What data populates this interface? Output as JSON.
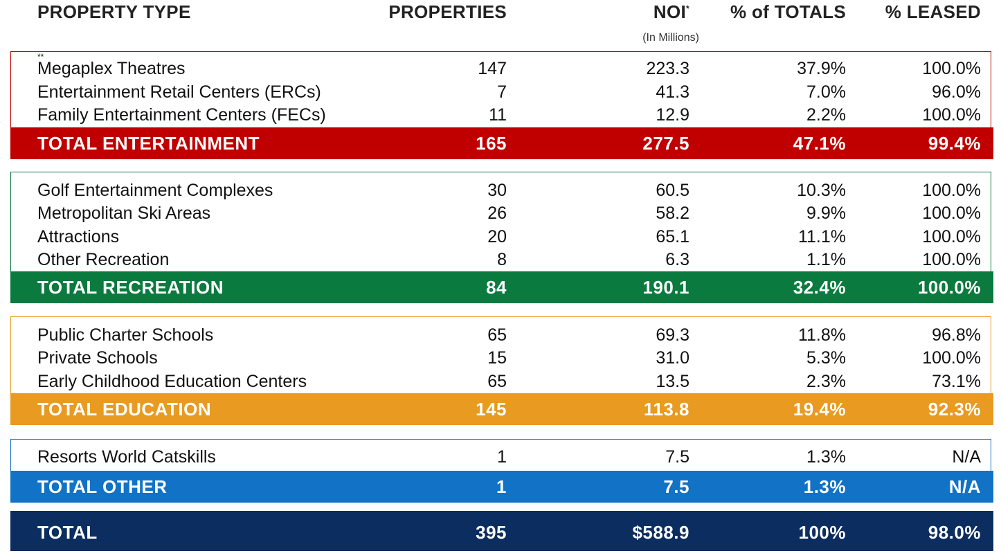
{
  "header": {
    "property_type": "PROPERTY TYPE",
    "properties": "PROPERTIES",
    "noi": "NOI",
    "noi_mark": "*",
    "noi_sub": "(In Millions)",
    "pct_totals": "% of TOTALS",
    "pct_leased": "% LEASED"
  },
  "colors": {
    "entertainment": "#c00000",
    "recreation": "#0b7a3e",
    "education": "#e89a21",
    "other": "#1172c6",
    "total": "#0b2d5f"
  },
  "entertainment": {
    "rows": [
      {
        "name": "Megaplex Theatres",
        "mark": "**",
        "properties": "147",
        "noi": "223.3",
        "pct": "37.9%",
        "leased": "100.0%"
      },
      {
        "name": "Entertainment Retail Centers (ERCs)",
        "mark": "",
        "properties": "7",
        "noi": "41.3",
        "pct": "7.0%",
        "leased": "96.0%"
      },
      {
        "name": "Family Entertainment Centers (FECs)",
        "mark": "",
        "properties": "11",
        "noi": "12.9",
        "pct": "2.2%",
        "leased": "100.0%"
      }
    ],
    "total": {
      "name": "TOTAL ENTERTAINMENT",
      "properties": "165",
      "noi": "277.5",
      "pct": "47.1%",
      "leased": "99.4%"
    }
  },
  "recreation": {
    "rows": [
      {
        "name": "Golf Entertainment Complexes",
        "properties": "30",
        "noi": "60.5",
        "pct": "10.3%",
        "leased": "100.0%"
      },
      {
        "name": "Metropolitan Ski Areas",
        "properties": "26",
        "noi": "58.2",
        "pct": "9.9%",
        "leased": "100.0%"
      },
      {
        "name": "Attractions",
        "properties": "20",
        "noi": "65.1",
        "pct": "11.1%",
        "leased": "100.0%"
      },
      {
        "name": "Other Recreation",
        "properties": "8",
        "noi": "6.3",
        "pct": "1.1%",
        "leased": "100.0%"
      }
    ],
    "total": {
      "name": "TOTAL RECREATION",
      "properties": "84",
      "noi": "190.1",
      "pct": "32.4%",
      "leased": "100.0%"
    }
  },
  "education": {
    "rows": [
      {
        "name": "Public Charter Schools",
        "properties": "65",
        "noi": "69.3",
        "pct": "11.8%",
        "leased": "96.8%"
      },
      {
        "name": "Private Schools",
        "properties": "15",
        "noi": "31.0",
        "pct": "5.3%",
        "leased": "100.0%"
      },
      {
        "name": "Early Childhood Education Centers",
        "properties": "65",
        "noi": "13.5",
        "pct": "2.3%",
        "leased": "73.1%"
      }
    ],
    "total": {
      "name": "TOTAL EDUCATION",
      "properties": "145",
      "noi": "113.8",
      "pct": "19.4%",
      "leased": "92.3%"
    }
  },
  "other": {
    "rows": [
      {
        "name": "Resorts World Catskills",
        "properties": "1",
        "noi": "7.5",
        "pct": "1.3%",
        "leased": "N/A"
      }
    ],
    "total": {
      "name": "TOTAL OTHER",
      "properties": "1",
      "noi": "7.5",
      "pct": "1.3%",
      "leased": "N/A"
    }
  },
  "grand_total": {
    "name": "TOTAL",
    "properties": "395",
    "noi": "$588.9",
    "pct": "100%",
    "leased": "98.0%"
  }
}
